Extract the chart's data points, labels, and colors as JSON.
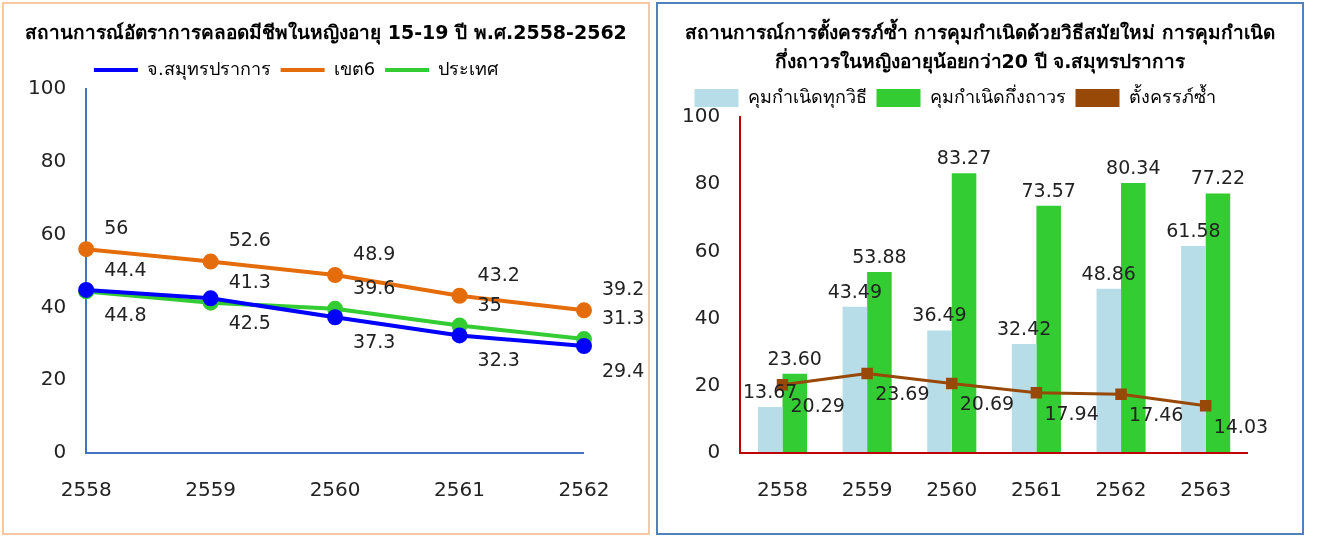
{
  "chart_data": [
    {
      "type": "line",
      "title": "สถานการณ์อัตราการคลอดมีชีพในหญิงอายุ 15-19 ปี พ.ศ.2558-2562",
      "categories": [
        "2558",
        "2559",
        "2560",
        "2561",
        "2562"
      ],
      "series": [
        {
          "name": "จ.สมุทรปราการ",
          "color": "#0000ff",
          "values": [
            44.8,
            42.5,
            37.3,
            32.3,
            29.4
          ]
        },
        {
          "name": "เขต6",
          "color": "#e46c0a",
          "values": [
            56,
            52.6,
            48.9,
            43.2,
            39.2
          ]
        },
        {
          "name": "ประเทศ",
          "color": "#33cc33",
          "values": [
            44.4,
            41.3,
            39.6,
            35,
            31.3
          ]
        }
      ],
      "ylim": [
        0,
        100
      ],
      "yticks": [
        0,
        20,
        40,
        60,
        80,
        100
      ],
      "grid": false,
      "legend": "top",
      "marker": "circle",
      "line_style": "solid",
      "data_labels": true
    },
    {
      "type": "bar",
      "title": "สถานการณ์การตั้งครรภ์ซ้ำ การคุมกำเนิดด้วยวิธีสมัยใหม่ การคุมกำเนิดกึ่งถาวรในหญิงอายุน้อยกว่า20 ปี จ.สมุทรปราการ",
      "categories": [
        "2558",
        "2559",
        "2560",
        "2561",
        "2562",
        "2563"
      ],
      "series": [
        {
          "name": "คุมกำเนิดทุกวิธี",
          "color": "#b7dde8",
          "values": [
            13.67,
            43.49,
            36.49,
            32.42,
            48.86,
            61.58
          ],
          "value_labels": [
            "13.67",
            "43.49",
            "36.49",
            "32.42",
            "48.86",
            "61.58"
          ]
        },
        {
          "name": "คุมกำเนิดกึ่งถาวร",
          "color": "#33cc33",
          "values": [
            23.6,
            53.88,
            83.27,
            73.57,
            80.34,
            77.22
          ],
          "value_labels": [
            "23.60",
            "53.88",
            "83.27",
            "73.57",
            "80.34",
            "77.22"
          ]
        },
        {
          "name": "ตั้งครรภ์ซ้ำ",
          "type": "line",
          "color": "#984807",
          "values": [
            20.29,
            23.69,
            20.69,
            17.94,
            17.46,
            14.03
          ],
          "value_labels": [
            "20.29",
            "23.69",
            "20.69",
            "17.94",
            "17.46",
            "14.03"
          ]
        }
      ],
      "ylim": [
        0,
        100
      ],
      "yticks": [
        0,
        20,
        40,
        60,
        80,
        100
      ],
      "grid": false,
      "legend": "top",
      "marker": "square",
      "line_style": "solid"
    }
  ]
}
